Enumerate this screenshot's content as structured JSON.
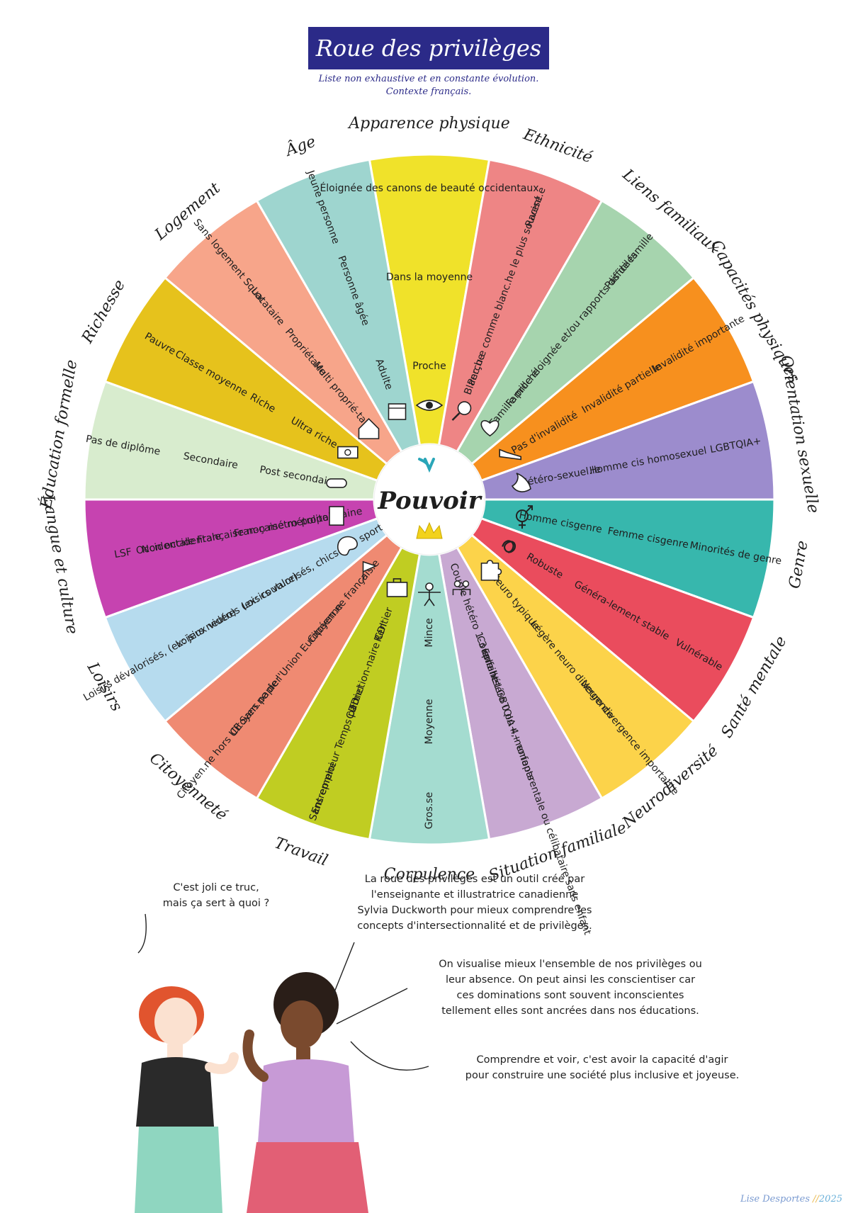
{
  "title": "Roue des privilèges",
  "subtitle": [
    "Liste non exhaustive et en constante évolution.",
    "Contexte français."
  ],
  "center": {
    "label": "Pouvoir"
  },
  "categories": [
    {
      "label": "Apparence physique",
      "color": "#f0e22a",
      "items": [
        "Éloignée des canons de beauté occidentaux",
        "Dans la moyenne",
        "Proche"
      ],
      "icon": "eye-icon"
    },
    {
      "label": "Ethnicité",
      "color": "#ee8585",
      "items": [
        "Racisé.e",
        "Perçu.e comme blanc.he le plus souvent",
        "Blanc.he"
      ],
      "icon": "magnifier-icon"
    },
    {
      "label": "Liens familiaux",
      "color": "#a6d4ae",
      "items": [
        "Pas de famille",
        "Famille éloignée et/ou rapports difficiles",
        "Famille proche"
      ],
      "icon": "heart-icon"
    },
    {
      "label": "Capacités physiques",
      "color": "#f7901e",
      "items": [
        "Invalidité importante",
        "Invalidité partielle",
        "Pas d'invalidité"
      ],
      "icon": "sneaker-icon"
    },
    {
      "label": "Orientation sexuelle",
      "color": "#9c8ccd",
      "items": [
        "LGBTQIA+",
        "Homme cis homosexuel",
        "Hétéro-sexuel.le"
      ],
      "icon": "flame-icon"
    },
    {
      "label": "Genre",
      "color": "#37b7ad",
      "items": [
        "Minorités de genre",
        "Femme cisgenre",
        "Homme cisgenre"
      ],
      "icon": "gender-icon"
    },
    {
      "label": "Santé mentale",
      "color": "#ea4c5d",
      "items": [
        "Vulnérable",
        "Généra-lement stable",
        "Robuste"
      ],
      "icon": "scribble-icon"
    },
    {
      "label": "Neurodiversité",
      "color": "#fcd34a",
      "items": [
        "Neuro divergence importante",
        "Légère neuro divergence",
        "Neuro typique"
      ],
      "icon": "puzzle-icon"
    },
    {
      "label": "Situation familiale",
      "color": "#c8a9d2",
      "items": [
        "Famille LGBTQIA+, monoparentale ou célibataire sans enfant",
        "Couple hétéro 0 ou 4+ enfants",
        "Couple hétéro 1-3 enfants"
      ],
      "icon": "family-icon"
    },
    {
      "label": "Corpulence",
      "color": "#a4dcd0",
      "items": [
        "Gros.se",
        "Moyenne",
        "Mince"
      ],
      "icon": "body-icon"
    },
    {
      "label": "Travail",
      "color": "#c0cd22",
      "items": [
        "Sans emploi",
        "Entrepreneur Temps partiel",
        "CDD",
        "Fonction-naire CDI",
        "Rentier"
      ],
      "icon": "briefcase-icon"
    },
    {
      "label": "Citoyenneté",
      "color": "#ef8a72",
      "items": [
        "Citoyen.ne hors UE Sans papier",
        "Citoyen.ne de l'Union Européenne",
        "Citoyen.ne français.e"
      ],
      "icon": "flag-icon"
    },
    {
      "label": "Loisirs",
      "color": "#b6dbee",
      "items": [
        "Loisirs dévalorisés, (ex: jeux vidéo)",
        "Loisirs neutres (ex: couture)",
        "Loisirs valorisés, chics (ex: sport)"
      ],
      "icon": "palette-icon"
    },
    {
      "label": "Langue et culture",
      "color": "#c643b0",
      "items": [
        "LSF",
        "Non occidentale",
        "Occidentale Française non métro-politaine",
        "Fran-çaise métropo-litaine"
      ],
      "icon": "book-icon"
    },
    {
      "label": "Éducation formelle",
      "color": "#d8ecce",
      "items": [
        "Pas de diplôme",
        "Secondaire",
        "Post secondaire"
      ],
      "icon": "diploma-icon"
    },
    {
      "label": "Richesse",
      "color": "#e6c21c",
      "items": [
        "Pauvre",
        "Classe moyenne",
        "Riche",
        "Ultra riche"
      ],
      "icon": "money-icon"
    },
    {
      "label": "Logement",
      "color": "#f7a58a",
      "items": [
        "Sans logement Squat",
        "Locataire",
        "Propriétaire",
        "Multi proprié-taire"
      ],
      "icon": "house-icon"
    },
    {
      "label": "Âge",
      "color": "#9ed5cf",
      "items": [
        "Jeune personne",
        "Personne âgée",
        "Adulte"
      ],
      "icon": "calendar-icon"
    }
  ],
  "dialogue": {
    "question": [
      "C'est joli ce truc,",
      "mais ça sert à quoi ?"
    ],
    "answer1": [
      "La roue des privilèges est un outil créé par",
      "l'enseignante et illustratrice canadienne",
      "Sylvia Duckworth pour mieux comprendre les",
      "concepts d'intersectionnalité et de privilèges."
    ],
    "answer2": [
      "On visualise mieux l'ensemble de nos privilèges ou",
      "leur absence. On peut ainsi les conscientiser car",
      "ces dominations sont souvent inconscientes",
      "tellement elles sont ancrées dans nos éducations."
    ],
    "answer3": [
      "Comprendre et voir, c'est avoir la capacité d'agir",
      "pour construire une société plus inclusive et joyeuse."
    ]
  },
  "credit": {
    "author": "Lise Desportes",
    "separator": "//",
    "year": "2025"
  }
}
